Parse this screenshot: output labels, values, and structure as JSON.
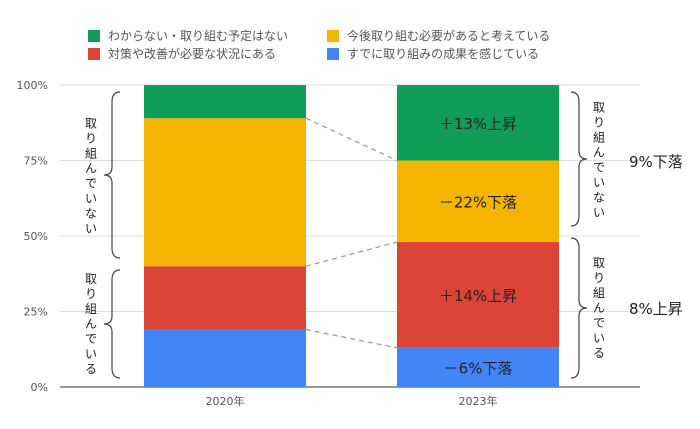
{
  "chart_data": {
    "type": "bar",
    "stacked": true,
    "categories": [
      "2020年",
      "2023年"
    ],
    "series": [
      {
        "name": "すでに取り組みの成果を感じている",
        "color": "#4285F4",
        "values": [
          19,
          13
        ]
      },
      {
        "name": "対策や改善が必要な状況にある",
        "color": "#DB4437",
        "values": [
          21,
          35
        ]
      },
      {
        "name": "今後取り組む必要があると考えている",
        "color": "#F4B400",
        "values": [
          49,
          27
        ]
      },
      {
        "name": "わからない・取り組む予定はない",
        "color": "#0F9D58",
        "values": [
          11,
          25
        ]
      }
    ],
    "ylim": [
      0,
      100
    ],
    "yticks": [
      "0%",
      "25%",
      "50%",
      "75%",
      "100%"
    ],
    "grid": true,
    "legend": "top",
    "segment_labels_2023": [
      "－6%下落",
      "＋14%上昇",
      "－22%下落",
      "＋13%上昇"
    ],
    "brackets": {
      "left_top": "取り組んでいない",
      "left_bottom": "取り組んでいる",
      "right_top": "取り組んでいない",
      "right_bottom": "取り組んでいる"
    },
    "side_summaries": {
      "top": "9%下落",
      "bottom": "8%上昇"
    }
  }
}
